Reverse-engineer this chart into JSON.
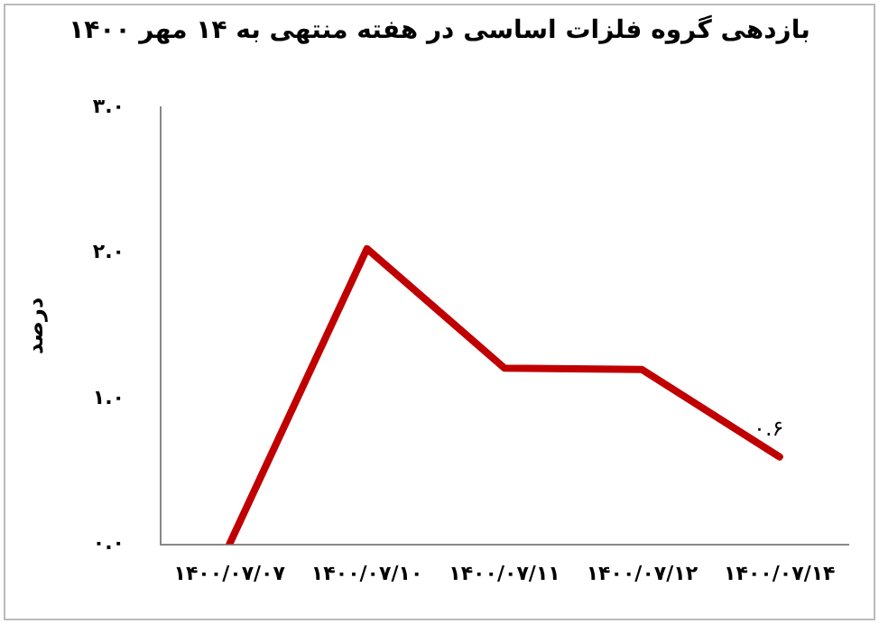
{
  "chart_data": {
    "type": "line",
    "title": "بازدهی گروه فلزات اساسی در هفته منتهی به ۱۴ مهر ۱۴۰۰",
    "ylabel": "درصد",
    "categories": [
      "۱۴۰۰/۰۷/۰۷",
      "۱۴۰۰/۰۷/۱۰",
      "۱۴۰۰/۰۷/۱۱",
      "۱۴۰۰/۰۷/۱۲",
      "۱۴۰۰/۰۷/۱۴"
    ],
    "series": [
      {
        "color": "#c00000",
        "values": [
          0,
          2.03,
          1.21,
          1.2,
          0.6
        ],
        "value_labels": [
          null,
          null,
          null,
          null,
          "۰.۶"
        ]
      }
    ],
    "ylim": [
      0,
      3
    ],
    "yticks": [
      {
        "value": 0,
        "label": "۰.۰"
      },
      {
        "value": 1,
        "label": "۱.۰"
      },
      {
        "value": 2,
        "label": "۲.۰"
      },
      {
        "value": 3,
        "label": "۳.۰"
      }
    ],
    "grid": false,
    "legend": false,
    "marker": "none",
    "line_style": "solid"
  }
}
